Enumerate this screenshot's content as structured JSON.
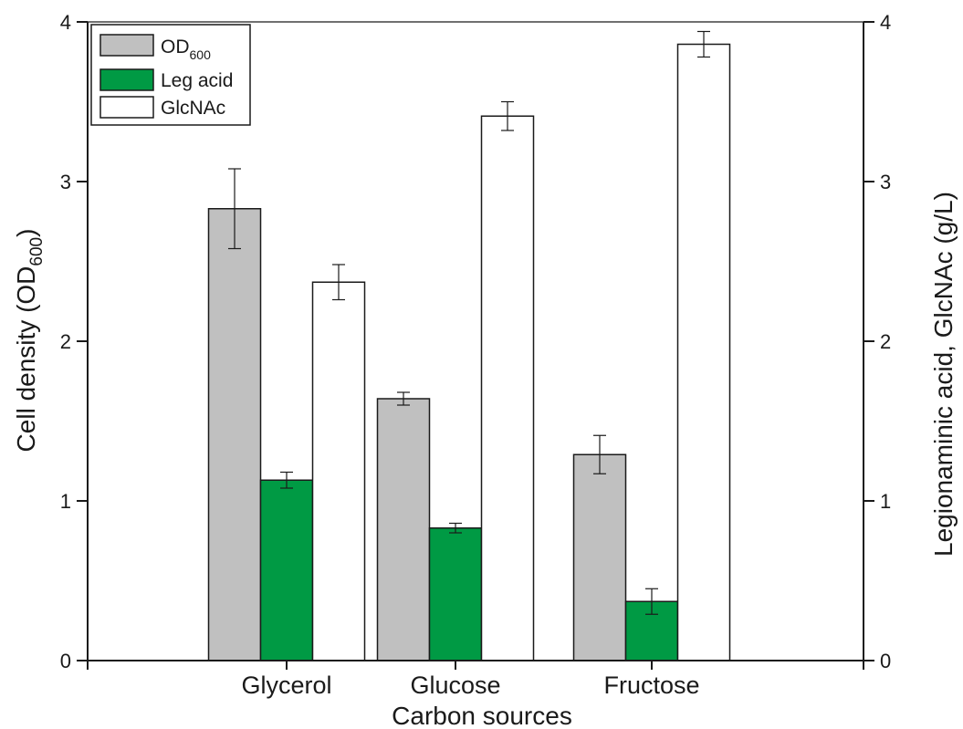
{
  "chart_data": {
    "type": "bar",
    "categories": [
      "Glycerol",
      "Glucose",
      "Fructose"
    ],
    "xlabel": "Carbon sources",
    "ylabel": {
      "main": "Cell density (OD",
      "sub": "600",
      "tail": ")"
    },
    "ylabel_right": "Legionaminic acid, GlcNAc (g/L)",
    "ylim": [
      0,
      4
    ],
    "ylim_right": [
      0,
      4
    ],
    "yticks": [
      "0",
      "1",
      "2",
      "3",
      "4"
    ],
    "yticks_right": [
      "0",
      "1",
      "2",
      "3",
      "4"
    ],
    "legend_position": "top-left",
    "series": [
      {
        "name": "OD",
        "name_sub": "600",
        "axis": "left",
        "color": "#c0c0c0",
        "values": [
          2.83,
          1.64,
          1.29
        ],
        "errors": [
          0.25,
          0.04,
          0.12
        ]
      },
      {
        "name": "Leg acid",
        "axis": "right",
        "color": "#009a44",
        "values": [
          1.13,
          0.83,
          0.37
        ],
        "errors": [
          0.05,
          0.03,
          0.08
        ]
      },
      {
        "name": "GlcNAc",
        "axis": "right",
        "color": "#ffffff",
        "values": [
          2.37,
          3.41,
          3.86
        ],
        "errors": [
          0.11,
          0.09,
          0.08
        ]
      }
    ]
  }
}
